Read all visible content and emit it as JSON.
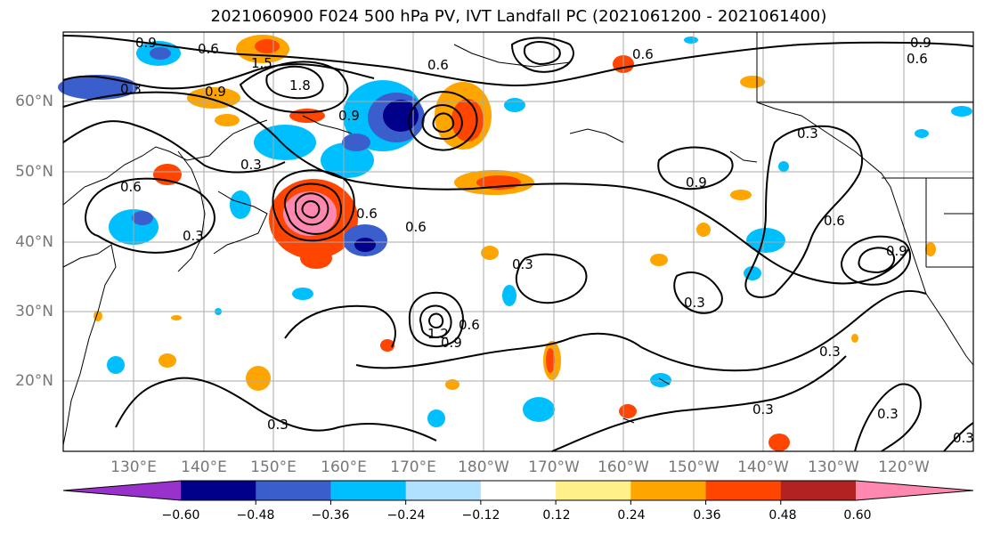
{
  "title": "2021060900 F024 500 hPa PV, IVT Landfall PC (2021061200 - 2021061400)",
  "map": {
    "lat_ticks": [
      "60°N",
      "50°N",
      "40°N",
      "30°N",
      "20°N"
    ],
    "lon_ticks": [
      "130°E",
      "140°E",
      "150°E",
      "160°E",
      "170°E",
      "180°W",
      "170°W",
      "160°W",
      "150°W",
      "140°W",
      "130°W",
      "120°W"
    ],
    "contour_labels": [
      "0.9",
      "0.6",
      "1.5",
      "0.3",
      "0.9",
      "1.8",
      "0.9",
      "0.6",
      "0.6",
      "0.3",
      "0.6",
      "0.3",
      "0.9",
      "0.6",
      "0.9",
      "0.6",
      "0.3",
      "0.3",
      "1.2",
      "0.9",
      "0.6",
      "0.3",
      "0.3",
      "0.3",
      "0.3",
      "0.3",
      "0.9",
      "0.6",
      "0.3",
      "0.6"
    ]
  },
  "colorbar": {
    "ticks": [
      "−0.60",
      "−0.48",
      "−0.36",
      "−0.24",
      "−0.12",
      "0.12",
      "0.24",
      "0.36",
      "0.48",
      "0.60"
    ],
    "colors": [
      "#9932cc",
      "#00008b",
      "#3a5fcd",
      "#00bfff",
      "#b0e2ff",
      "#ffffff",
      "#fff08a",
      "#ffa500",
      "#ff4500",
      "#b22222",
      "#ff88b0"
    ]
  }
}
